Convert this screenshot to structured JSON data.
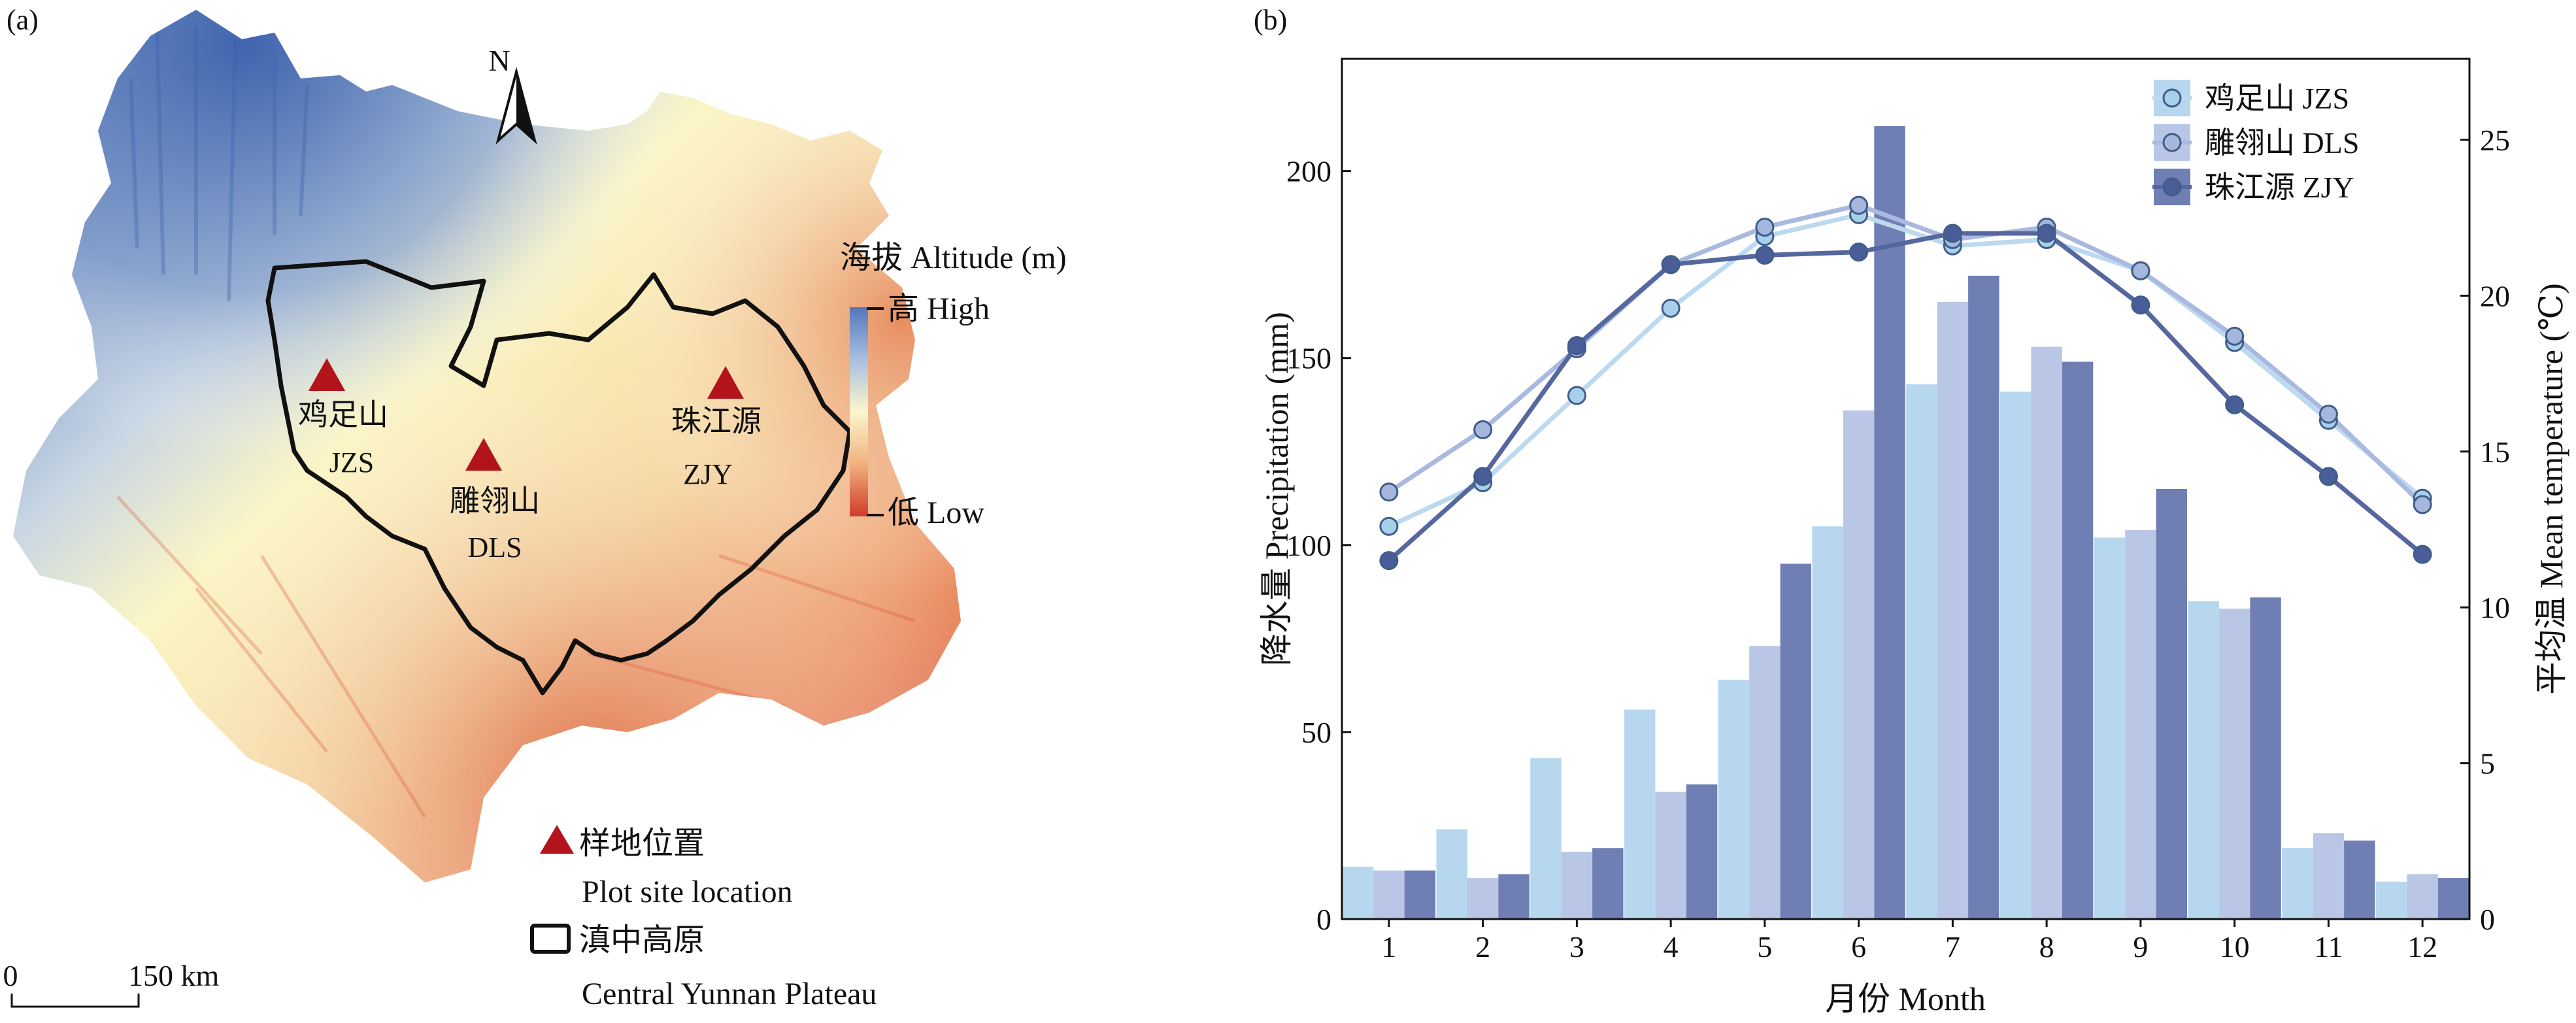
{
  "map": {
    "panel_label": "(a)",
    "north_label": "N",
    "legend_title": "海拔 Altitude (m)",
    "legend_high": "高 High",
    "legend_low": "低 Low",
    "sites": [
      {
        "zh": "鸡足山",
        "code": "JZS"
      },
      {
        "zh": "雕翎山",
        "code": "DLS"
      },
      {
        "zh": "珠江源",
        "code": "ZJY"
      }
    ],
    "site_legend_zh": "样地位置",
    "site_legend_en": "Plot site location",
    "plateau_legend_zh": "滇中高原",
    "plateau_legend_en": "Central Yunnan Plateau",
    "scale_zero": "0",
    "scale_label": "150 km",
    "colors": {
      "triangle": "#b3141c",
      "high": "#4f74b8",
      "mid": "#fbf5c6",
      "low": "#c73a2a",
      "boundary": "#111111"
    }
  },
  "chart_data": {
    "panel_label": "(b)",
    "type": "bar+line",
    "categories": [
      "1",
      "2",
      "3",
      "4",
      "5",
      "6",
      "7",
      "8",
      "9",
      "10",
      "11",
      "12"
    ],
    "xlabel": "月份 Month",
    "ylabel_left": "降水量 Precipitation (mm)",
    "ylabel_right": "平均温 Mean temperature (℃)",
    "ylim_left": [
      0,
      230
    ],
    "yticks_left": [
      0,
      50,
      100,
      150,
      200
    ],
    "ylim_right": [
      0,
      27.6
    ],
    "yticks_right": [
      0,
      5,
      10,
      15,
      20,
      25
    ],
    "legend_position": "top-right",
    "precipitation": [
      {
        "name": "鸡足山 JZS",
        "color": "#b7d7ee",
        "values": [
          14,
          24,
          43,
          56,
          64,
          105,
          143,
          141,
          102,
          85,
          19,
          10
        ]
      },
      {
        "name": "雕翎山 DLS",
        "color": "#b9c6e5",
        "values": [
          13,
          11,
          18,
          34,
          73,
          136,
          165,
          153,
          104,
          83,
          23,
          12
        ]
      },
      {
        "name": "珠江源 ZJY",
        "color": "#6f7fb3",
        "values": [
          13,
          12,
          19,
          36,
          95,
          212,
          172,
          149,
          115,
          86,
          21,
          11
        ]
      }
    ],
    "temperature": [
      {
        "name": "鸡足山 JZS",
        "line": "#bcd9ef",
        "marker": "#a9d0ea",
        "values": [
          12.6,
          14.0,
          16.8,
          19.6,
          21.9,
          22.6,
          21.6,
          21.8,
          20.8,
          18.5,
          16.0,
          13.5
        ]
      },
      {
        "name": "雕翎山 DLS",
        "line": "#a9b9e0",
        "marker": "#a6b7de",
        "values": [
          13.7,
          15.7,
          18.3,
          21.0,
          22.2,
          22.9,
          21.8,
          22.2,
          20.8,
          18.7,
          16.2,
          13.3
        ]
      },
      {
        "name": "珠江源 ZJY",
        "line": "#56679f",
        "marker": "#4b5d98",
        "values": [
          11.5,
          14.2,
          18.4,
          21.0,
          21.3,
          21.4,
          22.0,
          22.0,
          19.7,
          16.5,
          14.2,
          11.7
        ]
      }
    ]
  }
}
